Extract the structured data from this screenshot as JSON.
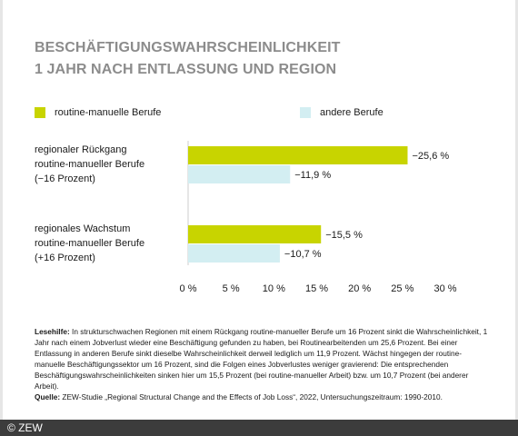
{
  "title_lines": [
    "BESCHÄFTIGUNGSWAHRSCHEINLICHKEIT",
    "1 JAHR NACH ENTLASSUNG UND REGION"
  ],
  "colors": {
    "routine": "#c8d400",
    "andere": "#d3eef2",
    "title": "#8c8c8c",
    "axis": "#cccccc",
    "footer_bg": "#3c3c3c"
  },
  "chart_data": {
    "type": "bar",
    "orientation": "horizontal",
    "title": "BESCHÄFTIGUNGSWAHRSCHEINLICHKEIT 1 JAHR NACH ENTLASSUNG UND REGION",
    "categories": [
      "regionaler Rückgang\nroutine-manueller Berufe\n(−16 Prozent)",
      "regionales Wachstum\nroutine-manueller Berufe\n(+16 Prozent)"
    ],
    "series": [
      {
        "name": "routine-manuelle Berufe",
        "values": [
          25.6,
          15.5
        ],
        "labels": [
          "−25,6 %",
          "−15,5 %"
        ]
      },
      {
        "name": "andere Berufe",
        "values": [
          11.9,
          10.7
        ],
        "labels": [
          "−11,9 %",
          "−10,7 %"
        ]
      }
    ],
    "xlim": [
      0,
      30
    ],
    "xticks": [
      0,
      5,
      10,
      15,
      20,
      25,
      30
    ],
    "xtick_labels": [
      "0 %",
      "5 %",
      "10 %",
      "15 %",
      "20 %",
      "25 %",
      "30 %"
    ],
    "legend_position": "top",
    "grid": false
  },
  "notes": {
    "lesehilfe_label": "Lesehilfe:",
    "lesehilfe_text": " In strukturschwachen Regionen mit einem Rückgang routine-manueller Berufe um 16 Prozent sinkt die Wahrscheinlichkeit, 1 Jahr nach einem Jobverlust wieder eine Beschäftigung gefunden zu haben, bei Routinearbeitenden um 25,6 Prozent. Bei einer Entlassung in anderen Berufe sinkt dieselbe Wahrscheinlichkeit derweil lediglich um 11,9 Prozent. Wächst hingegen der routine-manuelle Beschäftigungssektor um 16 Prozent, sind die Folgen eines Jobverlustes weniger gravierend: Die entsprechenden Beschäftigungswahrscheinlichkeiten sinken hier um 15,5 Prozent (bei routine-manueller Arbeit) bzw. um 10,7 Prozent (bei anderer Arbeit).",
    "quelle_label": "Quelle:",
    "quelle_text": " ZEW-Studie „Regional Structural Change and the Effects of Job Loss“, 2022, Untersuchungszeitraum: 1990-2010."
  },
  "footer": "© ZEW"
}
